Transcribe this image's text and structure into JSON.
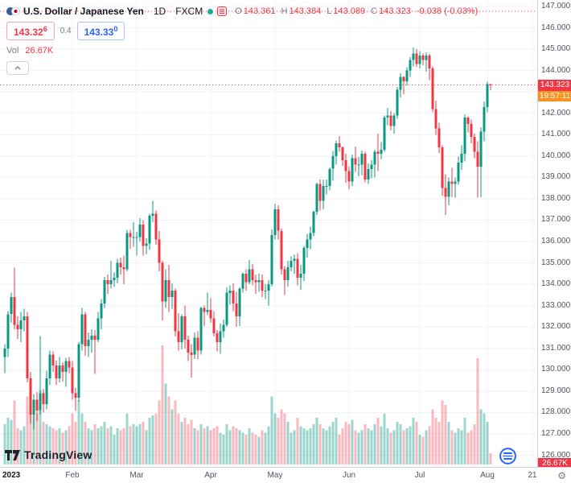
{
  "header": {
    "symbol": "U.S. Dollar / Japanese Yen",
    "sep": "·",
    "timeframe": "1D",
    "exchange": "FXCM",
    "ohlc": {
      "o_label": "O",
      "o": "143.361",
      "h_label": "H",
      "h": "143.384",
      "l_label": "L",
      "l": "143.089",
      "c_label": "C",
      "c": "143.323",
      "change": "-0.038 (-0.03%)"
    },
    "quote": {
      "bid": "143.32",
      "bid_sup": "6",
      "spread": "0.4",
      "ask": "143.33",
      "ask_sup": "0"
    },
    "vol_label": "Vol",
    "vol_value": "26.67K"
  },
  "axis": {
    "last_price": "143.323",
    "countdown": "19:57:11",
    "volume_badge": "26.67K"
  },
  "watermark": {
    "brand": "TradingView"
  },
  "ui_colors": {
    "up": "#089981",
    "down": "#F23645",
    "accent_blue": "#2962FF",
    "countdown_bg": "#F89321",
    "grid": "#EFF2F6",
    "axis_text": "#50535E"
  },
  "chart_data": {
    "type": "candlestick",
    "title": "U.S. Dollar / Japanese Yen",
    "timeframe": "1D",
    "source": "FXCM",
    "y_min": 126,
    "y_max": 147,
    "y_step": 1,
    "last_close": 143.323,
    "dotted_lines": [
      146.77,
      143.323
    ],
    "volume_unit": "K",
    "x_ticks": [
      {
        "label": "2023",
        "i": 0,
        "major": true
      },
      {
        "label": "Feb",
        "i": 21
      },
      {
        "label": "Mar",
        "i": 41
      },
      {
        "label": "Apr",
        "i": 64
      },
      {
        "label": "May",
        "i": 84
      },
      {
        "label": "Jun",
        "i": 107
      },
      {
        "label": "Jul",
        "i": 129
      },
      {
        "label": "Aug",
        "i": 150
      },
      {
        "label": "21",
        "i": 164
      }
    ],
    "colors": {
      "up": "#089981",
      "down": "#F23645",
      "vol_up": "rgba(8,153,129,0.40)",
      "vol_down": "rgba(242,54,69,0.35)"
    },
    "candles": [
      [
        130.6,
        131.2,
        129.85,
        131.0,
        95
      ],
      [
        131.0,
        132.75,
        130.6,
        132.6,
        110
      ],
      [
        132.6,
        133.6,
        132.2,
        133.4,
        105
      ],
      [
        133.4,
        134.78,
        131.9,
        132.1,
        150
      ],
      [
        132.1,
        132.5,
        131.45,
        131.9,
        85
      ],
      [
        131.9,
        132.7,
        131.3,
        132.3,
        80
      ],
      [
        132.3,
        132.85,
        131.8,
        132.5,
        90
      ],
      [
        132.5,
        132.7,
        129.4,
        129.6,
        160
      ],
      [
        129.6,
        129.9,
        127.46,
        127.9,
        170
      ],
      [
        127.9,
        128.87,
        127.23,
        128.6,
        140
      ],
      [
        128.6,
        128.95,
        127.6,
        128.1,
        120
      ],
      [
        128.1,
        131.57,
        127.9,
        128.9,
        175
      ],
      [
        128.9,
        129.1,
        128.0,
        128.4,
        100
      ],
      [
        128.4,
        129.95,
        128.15,
        129.6,
        95
      ],
      [
        129.6,
        130.9,
        129.3,
        130.7,
        90
      ],
      [
        130.7,
        130.85,
        129.9,
        130.2,
        85
      ],
      [
        130.2,
        130.45,
        129.3,
        129.6,
        80
      ],
      [
        129.6,
        130.6,
        129.4,
        130.2,
        85
      ],
      [
        130.2,
        130.35,
        129.45,
        129.9,
        75
      ],
      [
        129.9,
        130.55,
        129.2,
        130.4,
        80
      ],
      [
        130.4,
        130.6,
        129.85,
        130.1,
        90
      ],
      [
        130.1,
        130.4,
        128.6,
        128.9,
        120
      ],
      [
        128.9,
        129.15,
        128.08,
        128.7,
        100
      ],
      [
        128.7,
        131.3,
        128.5,
        131.2,
        150
      ],
      [
        131.2,
        132.9,
        130.9,
        132.6,
        120
      ],
      [
        132.6,
        132.7,
        130.65,
        131.1,
        100
      ],
      [
        131.1,
        131.75,
        130.6,
        131.4,
        85
      ],
      [
        131.4,
        131.9,
        130.8,
        131.6,
        80
      ],
      [
        131.6,
        131.85,
        129.8,
        131.4,
        95
      ],
      [
        131.4,
        132.7,
        131.3,
        132.4,
        85
      ],
      [
        132.4,
        133.3,
        131.9,
        133.1,
        90
      ],
      [
        133.1,
        134.35,
        132.9,
        134.2,
        100
      ],
      [
        134.2,
        134.45,
        133.55,
        134.0,
        85
      ],
      [
        134.0,
        135.1,
        133.8,
        134.2,
        90
      ],
      [
        134.2,
        134.55,
        133.9,
        134.3,
        70
      ],
      [
        134.3,
        135.2,
        134.05,
        135.0,
        85
      ],
      [
        135.0,
        135.25,
        134.45,
        134.8,
        80
      ],
      [
        134.8,
        135.35,
        134.0,
        134.7,
        85
      ],
      [
        134.7,
        136.55,
        134.6,
        136.4,
        120
      ],
      [
        136.4,
        136.55,
        135.65,
        136.2,
        90
      ],
      [
        136.2,
        136.9,
        135.75,
        136.2,
        95
      ],
      [
        136.2,
        136.45,
        135.35,
        136.2,
        90
      ],
      [
        136.2,
        137.1,
        136.0,
        136.8,
        95
      ],
      [
        136.8,
        137.0,
        135.35,
        135.8,
        100
      ],
      [
        135.8,
        136.15,
        135.4,
        135.9,
        80
      ],
      [
        135.9,
        137.3,
        135.6,
        137.2,
        110
      ],
      [
        137.2,
        137.91,
        136.9,
        137.3,
        115
      ],
      [
        137.3,
        137.45,
        135.85,
        136.1,
        120
      ],
      [
        136.1,
        136.5,
        134.6,
        135.0,
        150
      ],
      [
        135.0,
        135.1,
        132.3,
        133.2,
        280
      ],
      [
        133.2,
        134.7,
        132.9,
        134.2,
        190
      ],
      [
        134.2,
        134.9,
        132.7,
        133.4,
        160
      ],
      [
        133.4,
        134.05,
        132.85,
        133.7,
        130
      ],
      [
        133.7,
        133.8,
        131.55,
        131.8,
        150
      ],
      [
        131.8,
        132.65,
        130.9,
        131.3,
        120
      ],
      [
        131.3,
        132.6,
        130.95,
        132.5,
        100
      ],
      [
        132.5,
        133.0,
        131.0,
        131.4,
        110
      ],
      [
        131.4,
        131.6,
        130.4,
        130.8,
        95
      ],
      [
        130.8,
        131.2,
        129.64,
        130.7,
        105
      ],
      [
        130.7,
        131.75,
        130.5,
        131.5,
        85
      ],
      [
        131.5,
        131.8,
        130.5,
        130.9,
        80
      ],
      [
        130.9,
        132.95,
        130.7,
        132.9,
        95
      ],
      [
        132.9,
        133.0,
        132.05,
        132.7,
        85
      ],
      [
        132.7,
        133.6,
        132.55,
        132.8,
        90
      ],
      [
        132.8,
        133.35,
        132.2,
        132.4,
        80
      ],
      [
        132.4,
        132.75,
        131.55,
        131.7,
        85
      ],
      [
        131.7,
        131.85,
        130.85,
        131.3,
        90
      ],
      [
        131.3,
        132.15,
        130.75,
        131.8,
        75
      ],
      [
        131.8,
        132.35,
        131.5,
        132.1,
        70
      ],
      [
        132.1,
        133.85,
        132.0,
        133.6,
        95
      ],
      [
        133.6,
        133.95,
        133.05,
        133.7,
        80
      ],
      [
        133.7,
        134.05,
        132.75,
        133.1,
        90
      ],
      [
        133.1,
        133.65,
        132.0,
        132.5,
        85
      ],
      [
        132.5,
        133.85,
        132.05,
        133.8,
        80
      ],
      [
        133.8,
        134.55,
        133.6,
        134.5,
        75
      ],
      [
        134.5,
        134.7,
        133.7,
        134.1,
        70
      ],
      [
        134.1,
        135.13,
        134.0,
        134.7,
        85
      ],
      [
        134.7,
        134.95,
        133.95,
        134.2,
        75
      ],
      [
        134.2,
        134.45,
        133.55,
        134.1,
        70
      ],
      [
        134.1,
        134.5,
        133.65,
        134.2,
        65
      ],
      [
        134.2,
        134.45,
        133.4,
        133.7,
        80
      ],
      [
        133.7,
        134.0,
        133.3,
        133.7,
        75
      ],
      [
        133.7,
        134.2,
        133.01,
        134.0,
        90
      ],
      [
        134.0,
        136.56,
        133.9,
        136.3,
        160
      ],
      [
        136.3,
        137.77,
        136.1,
        137.5,
        120
      ],
      [
        137.5,
        137.7,
        136.1,
        136.5,
        110
      ],
      [
        136.5,
        136.6,
        134.45,
        134.7,
        130
      ],
      [
        134.7,
        134.85,
        133.5,
        134.2,
        120
      ],
      [
        134.2,
        135.1,
        133.9,
        134.8,
        100
      ],
      [
        134.8,
        135.3,
        134.6,
        135.1,
        75
      ],
      [
        135.1,
        135.4,
        134.5,
        135.2,
        80
      ],
      [
        135.2,
        135.45,
        133.95,
        134.3,
        110
      ],
      [
        134.3,
        134.9,
        133.75,
        134.5,
        90
      ],
      [
        134.5,
        135.8,
        134.15,
        135.7,
        85
      ],
      [
        135.7,
        136.35,
        135.25,
        136.1,
        80
      ],
      [
        136.1,
        136.7,
        135.65,
        136.4,
        85
      ],
      [
        136.4,
        137.45,
        136.25,
        137.4,
        95
      ],
      [
        137.4,
        138.75,
        137.25,
        138.7,
        110
      ],
      [
        138.7,
        138.9,
        137.45,
        137.9,
        95
      ],
      [
        137.9,
        138.88,
        137.5,
        138.6,
        85
      ],
      [
        138.6,
        138.9,
        138.2,
        138.6,
        80
      ],
      [
        138.6,
        139.47,
        138.4,
        139.4,
        90
      ],
      [
        139.4,
        140.23,
        138.85,
        140.0,
        100
      ],
      [
        140.0,
        140.73,
        139.6,
        140.6,
        110
      ],
      [
        140.6,
        140.93,
        140.2,
        140.4,
        70
      ],
      [
        140.4,
        140.45,
        139.55,
        139.8,
        85
      ],
      [
        139.8,
        140.1,
        138.75,
        139.3,
        100
      ],
      [
        139.3,
        139.5,
        138.45,
        138.8,
        95
      ],
      [
        138.8,
        140.07,
        138.6,
        139.9,
        105
      ],
      [
        139.9,
        140.45,
        139.25,
        139.6,
        80
      ],
      [
        139.6,
        139.95,
        139.05,
        139.6,
        75
      ],
      [
        139.6,
        140.25,
        139.1,
        140.1,
        80
      ],
      [
        140.1,
        140.2,
        138.77,
        138.9,
        95
      ],
      [
        138.9,
        139.65,
        138.7,
        139.4,
        85
      ],
      [
        139.4,
        139.8,
        138.95,
        139.6,
        80
      ],
      [
        139.6,
        140.3,
        139.0,
        140.2,
        95
      ],
      [
        140.2,
        141.05,
        139.3,
        140.1,
        110
      ],
      [
        140.1,
        140.65,
        139.85,
        140.3,
        90
      ],
      [
        140.3,
        141.9,
        140.2,
        141.8,
        120
      ],
      [
        141.8,
        142.25,
        141.45,
        141.9,
        85
      ],
      [
        141.9,
        142.1,
        141.2,
        141.4,
        75
      ],
      [
        141.4,
        142.0,
        141.05,
        141.9,
        80
      ],
      [
        141.9,
        143.23,
        141.75,
        143.1,
        100
      ],
      [
        143.1,
        143.87,
        142.75,
        143.7,
        95
      ],
      [
        143.7,
        143.75,
        142.9,
        143.5,
        80
      ],
      [
        143.5,
        144.15,
        143.3,
        144.0,
        85
      ],
      [
        144.0,
        144.62,
        143.7,
        144.5,
        90
      ],
      [
        144.5,
        145.07,
        144.2,
        144.8,
        110
      ],
      [
        144.8,
        145.0,
        144.15,
        144.3,
        100
      ],
      [
        144.3,
        144.9,
        144.1,
        144.7,
        70
      ],
      [
        144.7,
        144.8,
        144.25,
        144.5,
        65
      ],
      [
        144.5,
        144.85,
        143.95,
        144.7,
        80
      ],
      [
        144.7,
        144.8,
        143.55,
        144.1,
        90
      ],
      [
        144.1,
        144.2,
        142.05,
        142.2,
        130
      ],
      [
        142.2,
        142.6,
        141.0,
        141.3,
        110
      ],
      [
        141.3,
        141.55,
        140.15,
        140.4,
        100
      ],
      [
        140.4,
        140.5,
        138.15,
        138.5,
        150
      ],
      [
        138.5,
        139.15,
        137.25,
        138.1,
        140
      ],
      [
        138.1,
        139.0,
        137.7,
        138.8,
        100
      ],
      [
        138.8,
        139.45,
        138.1,
        138.7,
        80
      ],
      [
        138.7,
        139.0,
        138.05,
        138.8,
        75
      ],
      [
        138.8,
        139.98,
        138.65,
        139.7,
        85
      ],
      [
        139.7,
        140.5,
        139.35,
        140.1,
        80
      ],
      [
        140.1,
        141.96,
        139.75,
        141.8,
        110
      ],
      [
        141.8,
        141.85,
        141.1,
        141.5,
        75
      ],
      [
        141.5,
        141.7,
        140.6,
        140.9,
        80
      ],
      [
        140.9,
        141.05,
        139.9,
        140.2,
        95
      ],
      [
        140.2,
        140.7,
        138.05,
        139.5,
        250
      ],
      [
        139.5,
        141.35,
        138.07,
        141.15,
        130
      ],
      [
        141.15,
        142.55,
        140.7,
        142.3,
        120
      ],
      [
        142.3,
        143.47,
        142.05,
        143.361,
        100
      ],
      [
        143.361,
        143.384,
        143.089,
        143.323,
        26.67
      ]
    ]
  }
}
